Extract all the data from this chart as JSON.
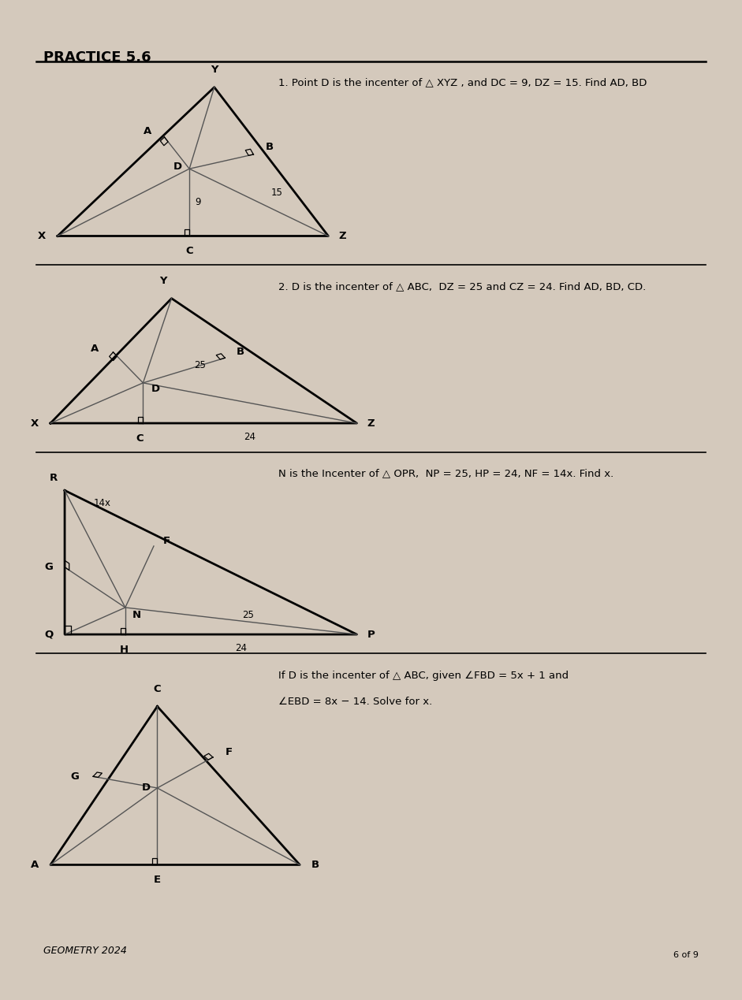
{
  "title": "PRACTICE 5.6",
  "bg_color": "#d4c9bc",
  "paper_color": "#ede8e0",
  "section1_problem": "1. Point D is the incenter of △ XYZ , and DC = 9, DZ = 15. Find AD, BD",
  "section2_problem": "2. D is the incenter of △ ABC,  DZ = 25 and CZ = 24. Find AD, BD, CD.",
  "section3_problem": "N is the Incenter of △ OPR,  NP = 25, HP = 24, NF = 14x. Find x.",
  "section4_problem1": "If D is the incenter of △ ABC, given ∠FBD = 5x + 1 and",
  "section4_problem2": "∠EBD = 8x − 14. Solve for x.",
  "footer": "GEOMETRY 2024",
  "page": "6 of 9"
}
